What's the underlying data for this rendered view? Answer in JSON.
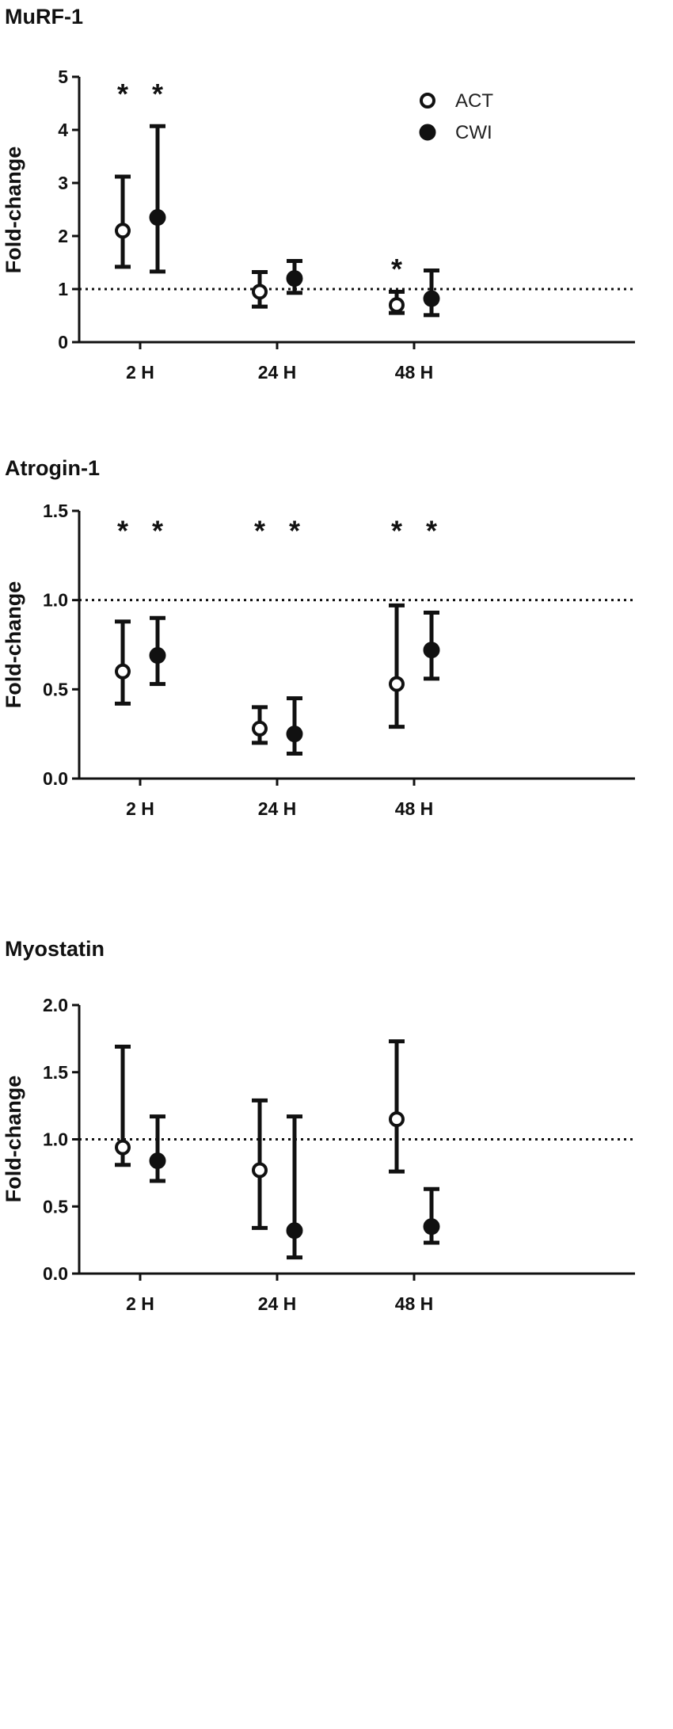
{
  "chart_data": [
    {
      "type": "scatter",
      "title": "MuRF-1",
      "ylabel": "Fold-change",
      "xlabel": "",
      "categories": [
        "2 H",
        "24 H",
        "48 H"
      ],
      "ylim": [
        0,
        5
      ],
      "yticks": [
        "0",
        "1",
        "2",
        "3",
        "4",
        "5"
      ],
      "reference_line": 1,
      "legend": {
        "position": "top-right",
        "entries": [
          "ACT",
          "CWI"
        ]
      },
      "series": [
        {
          "name": "ACT",
          "marker": "open-circle",
          "values": [
            2.1,
            0.95,
            0.7
          ],
          "error_low": [
            1.42,
            0.67,
            0.55
          ],
          "error_high": [
            3.12,
            1.32,
            0.95
          ]
        },
        {
          "name": "CWI",
          "marker": "filled-circle",
          "values": [
            2.35,
            1.2,
            0.82
          ],
          "error_low": [
            1.33,
            0.93,
            0.51
          ],
          "error_high": [
            4.07,
            1.53,
            1.35
          ]
        }
      ],
      "significance": [
        {
          "category": "2 H",
          "series": "ACT",
          "mark": "*",
          "y": 4.85
        },
        {
          "category": "2 H",
          "series": "CWI",
          "mark": "*",
          "y": 4.85
        },
        {
          "category": "48 H",
          "series": "ACT",
          "mark": "*",
          "y": 1.55
        }
      ]
    },
    {
      "type": "scatter",
      "title": "Atrogin-1",
      "ylabel": "Fold-change",
      "xlabel": "",
      "categories": [
        "2 H",
        "24 H",
        "48 H"
      ],
      "ylim": [
        0,
        1.5
      ],
      "yticks": [
        "0.0",
        "0.5",
        "1.0",
        "1.5"
      ],
      "reference_line": 1,
      "series": [
        {
          "name": "ACT",
          "marker": "open-circle",
          "values": [
            0.6,
            0.28,
            0.53
          ],
          "error_low": [
            0.42,
            0.2,
            0.29
          ],
          "error_high": [
            0.88,
            0.4,
            0.97
          ]
        },
        {
          "name": "CWI",
          "marker": "filled-circle",
          "values": [
            0.69,
            0.25,
            0.72
          ],
          "error_low": [
            0.53,
            0.14,
            0.56
          ],
          "error_high": [
            0.9,
            0.45,
            0.93
          ]
        }
      ],
      "significance": [
        {
          "category": "2 H",
          "series": "ACT",
          "mark": "*",
          "y": 1.44
        },
        {
          "category": "2 H",
          "series": "CWI",
          "mark": "*",
          "y": 1.44
        },
        {
          "category": "24 H",
          "series": "ACT",
          "mark": "*",
          "y": 1.44
        },
        {
          "category": "24 H",
          "series": "CWI",
          "mark": "*",
          "y": 1.44
        },
        {
          "category": "48 H",
          "series": "ACT",
          "mark": "*",
          "y": 1.44
        },
        {
          "category": "48 H",
          "series": "CWI",
          "mark": "*",
          "y": 1.44
        }
      ]
    },
    {
      "type": "scatter",
      "title": "Myostatin",
      "ylabel": "Fold-change",
      "xlabel": "",
      "categories": [
        "2 H",
        "24 H",
        "48 H"
      ],
      "ylim": [
        0,
        2
      ],
      "yticks": [
        "0.0",
        "0.5",
        "1.0",
        "1.5",
        "2.0"
      ],
      "reference_line": 1,
      "series": [
        {
          "name": "ACT",
          "marker": "open-circle",
          "values": [
            0.94,
            0.77,
            1.15
          ],
          "error_low": [
            0.81,
            0.34,
            0.76
          ],
          "error_high": [
            1.69,
            1.29,
            1.73
          ]
        },
        {
          "name": "CWI",
          "marker": "filled-circle",
          "values": [
            0.84,
            0.32,
            0.35
          ],
          "error_low": [
            0.69,
            0.12,
            0.23
          ],
          "error_high": [
            1.17,
            1.17,
            0.63
          ]
        }
      ],
      "significance": []
    }
  ]
}
